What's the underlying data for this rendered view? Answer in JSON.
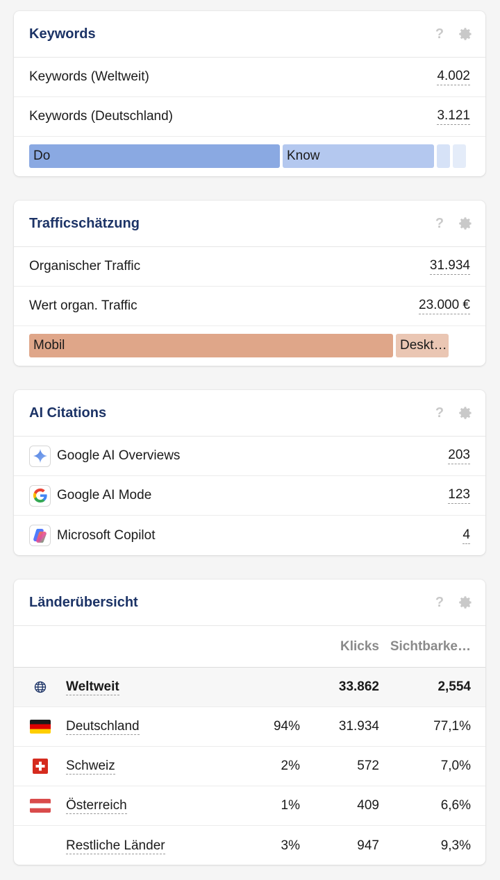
{
  "keywords": {
    "title": "Keywords",
    "help": "?",
    "rows": [
      {
        "label": "Keywords (Weltweit)",
        "value": "4.002"
      },
      {
        "label": "Keywords (Deutschland)",
        "value": "3.121"
      }
    ],
    "intent_bar": [
      {
        "label": "Do",
        "share": 0.58,
        "color": "#8aa9e2"
      },
      {
        "label": "Know",
        "share": 0.35,
        "color": "#b4c8ef"
      },
      {
        "label": "",
        "share": 0.03,
        "color": "#d6e2f7"
      },
      {
        "label": "",
        "share": 0.03,
        "color": "#e4ecf9"
      }
    ]
  },
  "traffic": {
    "title": "Trafficschätzung",
    "help": "?",
    "rows": [
      {
        "label": "Organischer Traffic",
        "value": "31.934"
      },
      {
        "label": "Wert organ. Traffic",
        "value": "23.000 €"
      }
    ],
    "device_bar": [
      {
        "label": "Mobil",
        "share": 0.83,
        "color": "#dfa689"
      },
      {
        "label": "Deskt…",
        "share": 0.12,
        "color": "#eac6b3"
      }
    ]
  },
  "ai_citations": {
    "title": "AI Citations",
    "help": "?",
    "rows": [
      {
        "label": "Google AI Overviews",
        "value": "203",
        "icon": "sparkle-icon"
      },
      {
        "label": "Google AI Mode",
        "value": "123",
        "icon": "google-g-icon"
      },
      {
        "label": "Microsoft Copilot",
        "value": "4",
        "icon": "copilot-icon"
      }
    ]
  },
  "countries": {
    "title": "Länderübersicht",
    "help": "?",
    "columns": {
      "clicks": "Klicks",
      "visibility": "Sichtbarke…"
    },
    "rows": [
      {
        "name": "Weltweit",
        "pct": "",
        "clicks": "33.862",
        "visibility": "2,554",
        "flag": "globe-icon"
      },
      {
        "name": "Deutschland",
        "pct": "94%",
        "clicks": "31.934",
        "visibility": "77,1%",
        "flag": "germany-flag-icon"
      },
      {
        "name": "Schweiz",
        "pct": "2%",
        "clicks": "572",
        "visibility": "7,0%",
        "flag": "switzerland-flag-icon"
      },
      {
        "name": "Österreich",
        "pct": "1%",
        "clicks": "409",
        "visibility": "6,6%",
        "flag": "austria-flag-icon"
      },
      {
        "name": "Restliche Länder",
        "pct": "3%",
        "clicks": "947",
        "visibility": "9,3%",
        "flag": ""
      }
    ]
  }
}
